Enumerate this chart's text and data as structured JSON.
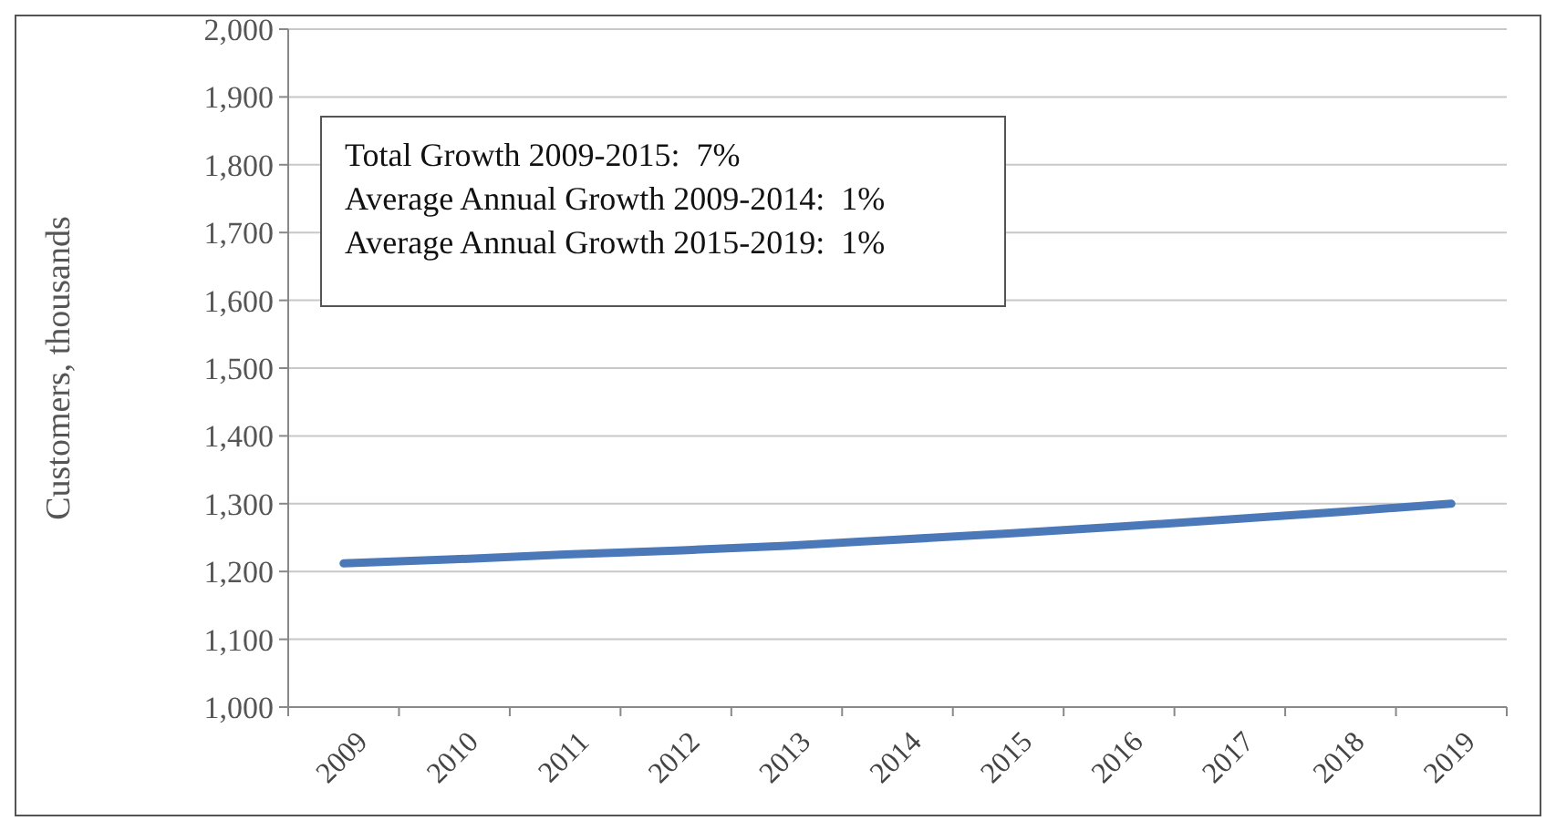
{
  "chart_data": {
    "type": "line",
    "ylabel": "Customers, thousands",
    "categories": [
      "2009",
      "2010",
      "2011",
      "2012",
      "2013",
      "2014",
      "2015",
      "2016",
      "2017",
      "2018",
      "2019"
    ],
    "series": [
      {
        "color": "#4a78b8",
        "values": [
          1212,
          1218,
          1225,
          1231,
          1238,
          1247,
          1256,
          1266,
          1277,
          1288,
          1300
        ]
      }
    ],
    "ylim": [
      1000,
      2000
    ],
    "yticks": [
      {
        "value": 1000,
        "label": "1,000"
      },
      {
        "value": 1100,
        "label": "1,100"
      },
      {
        "value": 1200,
        "label": "1,200"
      },
      {
        "value": 1300,
        "label": "1,300"
      },
      {
        "value": 1400,
        "label": "1,400"
      },
      {
        "value": 1500,
        "label": "1,500"
      },
      {
        "value": 1600,
        "label": "1,600"
      },
      {
        "value": 1700,
        "label": "1,700"
      },
      {
        "value": 1800,
        "label": "1,800"
      },
      {
        "value": 1900,
        "label": "1,900"
      },
      {
        "value": 2000,
        "label": "2,000"
      }
    ],
    "grid": "y",
    "marker": "none",
    "line_style": "solid",
    "annotations": [
      "Total Growth 2009-2015:  7%",
      "Average Annual Growth 2009-2014:  1%",
      "Average Annual Growth 2015-2019:  1%"
    ]
  }
}
